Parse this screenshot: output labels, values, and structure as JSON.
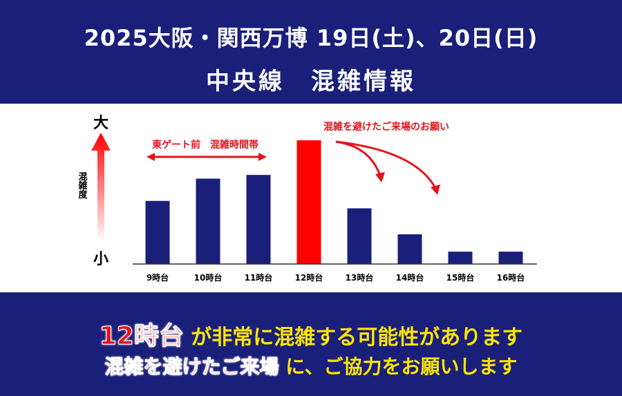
{
  "header": {
    "title_line1": "2025大阪・関西万博 19日(土)、20日(日)",
    "title_line2": "中央線　混雑情報"
  },
  "chart_data": {
    "type": "bar",
    "categories": [
      "9時台",
      "10時台",
      "11時台",
      "12時台",
      "13時台",
      "14時台",
      "15時台",
      "16時台"
    ],
    "values": [
      51,
      69,
      72,
      100,
      45,
      24,
      10,
      10
    ],
    "ylim": [
      0,
      100
    ],
    "y_axis_top_label": "大",
    "y_axis_bottom_label": "小",
    "y_axis_label": "混雑度",
    "highlight_category": "12時台",
    "bar_color": "#1a1f7a",
    "highlight_color": "#ff0000",
    "annotations": {
      "east_gate": "東ゲート前　混雑時間帯",
      "avoid": "混雑を避けたご来場のお願い"
    }
  },
  "footer": {
    "line1_red": "12時台",
    "line1_rest": " が非常に混雑する可能性があります",
    "line2_red": "混雑を避けたご来場",
    "line2_rest": " に、ご協力をお願いします"
  }
}
